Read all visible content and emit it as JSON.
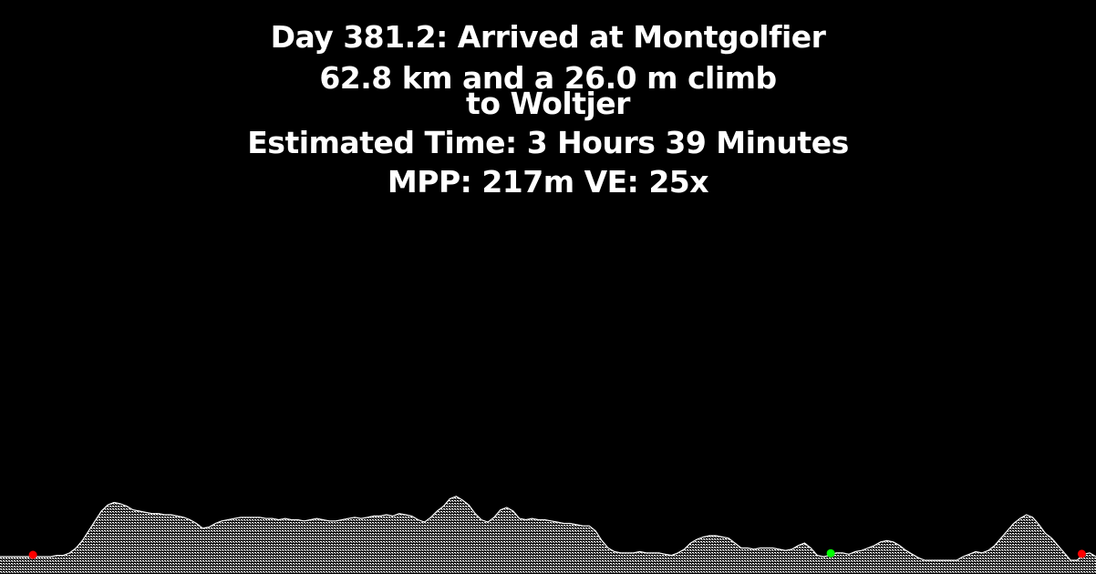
{
  "header": {
    "status_line": "Day 381.2: Arrived at Montgolfier",
    "distance_line": "62.8 km and a 26.0 m climb",
    "destination_line": "to Woltjer",
    "time_line": "Estimated Time: 3 Hours 39 Minutes",
    "scale_line": "MPP: 217m VE: 25x"
  },
  "colors": {
    "background": "#000000",
    "text": "#ffffff",
    "terrain": "#ffffff",
    "start_marker": "#ff0000",
    "current_marker": "#00ff00",
    "end_marker": "#ff0000"
  },
  "profile": {
    "elevation": [
      3,
      3,
      3,
      3,
      3,
      3,
      3,
      3,
      3,
      4,
      4,
      6,
      10,
      16,
      24,
      32,
      40,
      45,
      47,
      46,
      44,
      41,
      40,
      39,
      38,
      38,
      37,
      37,
      36,
      35,
      33,
      30,
      26,
      27,
      30,
      32,
      33,
      34,
      35,
      35,
      35,
      35,
      34,
      34,
      33,
      34,
      33,
      33,
      32,
      33,
      34,
      33,
      32,
      32,
      33,
      34,
      35,
      34,
      35,
      36,
      36,
      37,
      36,
      38,
      37,
      36,
      33,
      31,
      35,
      40,
      44,
      50,
      52,
      49,
      45,
      38,
      33,
      31,
      35,
      41,
      43,
      40,
      34,
      33,
      34,
      33,
      33,
      32,
      31,
      30,
      30,
      29,
      28,
      28,
      24,
      16,
      10,
      7,
      6,
      6,
      6,
      7,
      6,
      6,
      6,
      5,
      4,
      6,
      9,
      14,
      17,
      19,
      20,
      20,
      19,
      18,
      14,
      10,
      10,
      9,
      10,
      10,
      10,
      9,
      8,
      9,
      12,
      14,
      10,
      4,
      3,
      4,
      6,
      6,
      5,
      7,
      8,
      10,
      12,
      15,
      16,
      15,
      12,
      8,
      5,
      2,
      0,
      0,
      0,
      0,
      0,
      0,
      3,
      5,
      7,
      6,
      8,
      12,
      18,
      24,
      30,
      34,
      37,
      35,
      29,
      22,
      18,
      12,
      6,
      0,
      0,
      5,
      6,
      3
    ],
    "markers": [
      {
        "name": "start",
        "position": 0.03,
        "color_key": "start_marker"
      },
      {
        "name": "current",
        "position": 0.758,
        "color_key": "current_marker"
      },
      {
        "name": "end",
        "position": 0.987,
        "color_key": "end_marker"
      }
    ]
  }
}
